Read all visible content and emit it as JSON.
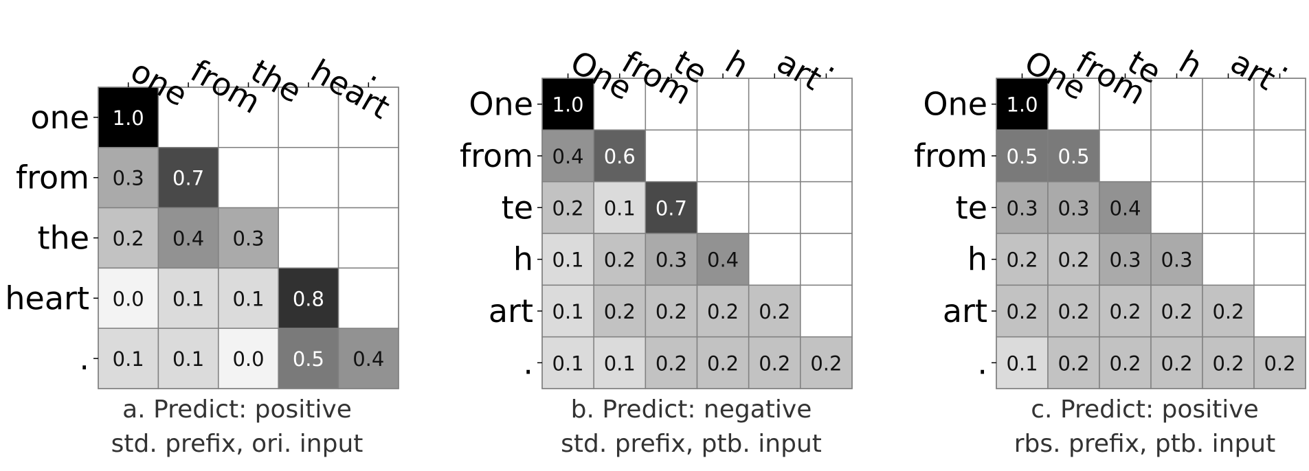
{
  "chart_data": [
    {
      "type": "heatmap",
      "tokens": [
        "one",
        "from",
        "the",
        "heart",
        "."
      ],
      "values": [
        [
          1.0,
          null,
          null,
          null,
          null
        ],
        [
          0.3,
          0.7,
          null,
          null,
          null
        ],
        [
          0.2,
          0.4,
          0.3,
          null,
          null
        ],
        [
          0.0,
          0.1,
          0.1,
          0.8,
          null
        ],
        [
          0.1,
          0.1,
          0.0,
          0.5,
          0.4
        ]
      ],
      "caption": [
        "a. Predict: positive",
        "std. prefix, ori. input"
      ]
    },
    {
      "type": "heatmap",
      "tokens": [
        "One",
        "from",
        "te",
        "h",
        "art",
        "."
      ],
      "values": [
        [
          1.0,
          null,
          null,
          null,
          null,
          null
        ],
        [
          0.4,
          0.6,
          null,
          null,
          null,
          null
        ],
        [
          0.2,
          0.1,
          0.7,
          null,
          null,
          null
        ],
        [
          0.1,
          0.2,
          0.3,
          0.4,
          null,
          null
        ],
        [
          0.1,
          0.2,
          0.2,
          0.2,
          0.2,
          null
        ],
        [
          0.1,
          0.1,
          0.2,
          0.2,
          0.2,
          0.2
        ]
      ],
      "caption": [
        "b. Predict: negative",
        "std. prefix, ptb. input"
      ]
    },
    {
      "type": "heatmap",
      "tokens": [
        "One",
        "from",
        "te",
        "h",
        "art",
        "."
      ],
      "values": [
        [
          1.0,
          null,
          null,
          null,
          null,
          null
        ],
        [
          0.5,
          0.5,
          null,
          null,
          null,
          null
        ],
        [
          0.3,
          0.3,
          0.4,
          null,
          null,
          null
        ],
        [
          0.2,
          0.2,
          0.3,
          0.3,
          null,
          null
        ],
        [
          0.2,
          0.2,
          0.2,
          0.2,
          0.2,
          null
        ],
        [
          0.1,
          0.2,
          0.2,
          0.2,
          0.2,
          0.2
        ]
      ],
      "caption": [
        "c. Predict: positive",
        "rbs. prefix, ptb. input"
      ]
    }
  ]
}
